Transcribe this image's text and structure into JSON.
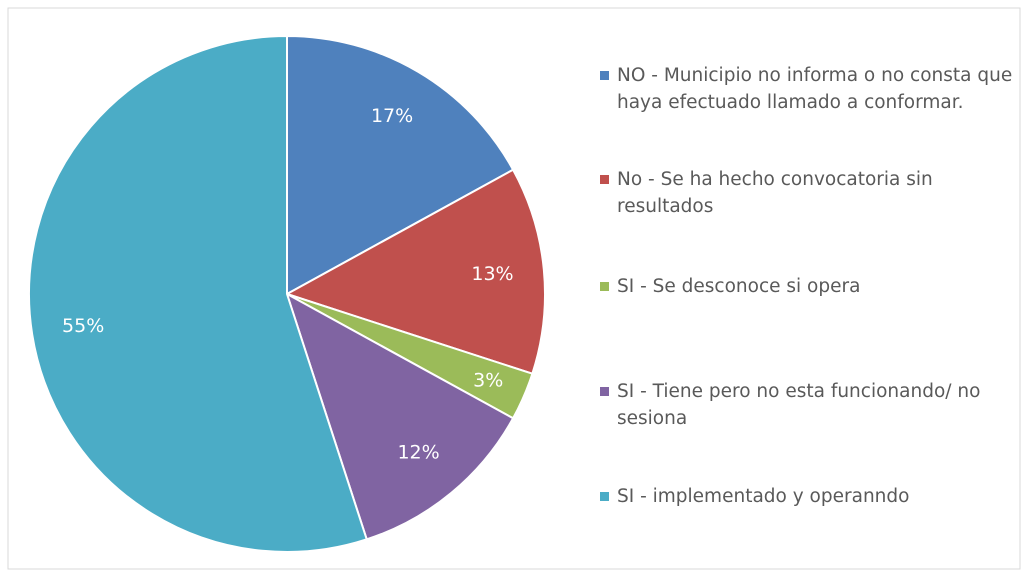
{
  "chart_data": {
    "type": "pie",
    "categories": [
      "NO - Municipio no informa o no consta que haya efectuado llamado a conformar.",
      "No - Se ha hecho convocatoria sin resultados",
      "SI - Se desconoce si opera",
      "SI - Tiene pero no esta funcionando/ no sesiona",
      "SI - implementado y  operanndo"
    ],
    "values": [
      17,
      13,
      3,
      12,
      55
    ],
    "value_labels": [
      "17%",
      "13%",
      "3%",
      "12%",
      "55%"
    ],
    "colors": [
      "#4f81bd",
      "#c0504d",
      "#9bbb59",
      "#8064a2",
      "#4bacc6"
    ],
    "legend": "right"
  }
}
